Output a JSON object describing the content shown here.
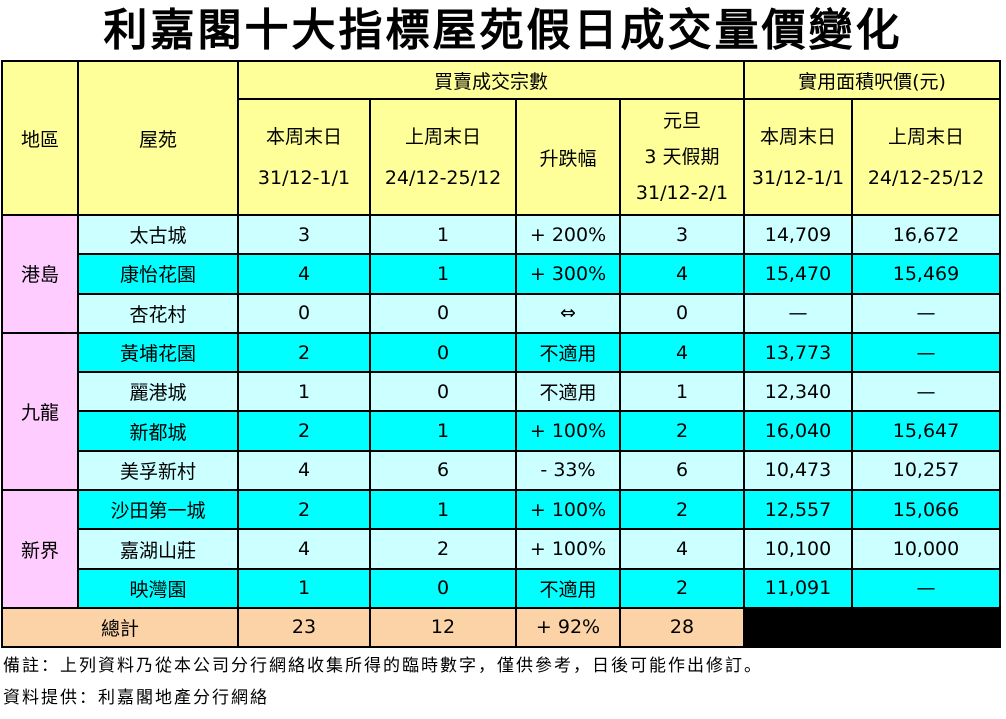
{
  "title": "利嘉閣十大指標屋苑假日成交量價變化",
  "header": {
    "district": "地區",
    "estate": "屋苑",
    "group_transactions": "買賣成交宗數",
    "group_price": "實用面積呎價(元)",
    "this_weekend": "本周末日",
    "this_weekend_dates": "31/12-1/1",
    "last_weekend": "上周末日",
    "last_weekend_dates": "24/12-25/12",
    "change": "升跌幅",
    "new_year_line1": "元旦",
    "new_year_line2": "3 天假期",
    "new_year_dates": "31/12-2/1",
    "price_this_weekend": "本周末日",
    "price_this_dates": "31/12-1/1",
    "price_last_weekend": "上周末日",
    "price_last_dates": "24/12-25/12"
  },
  "regions": [
    {
      "name": "港島",
      "rows": [
        {
          "estate": "太古城",
          "this": "3",
          "last": "1",
          "change": "+ 200%",
          "holiday": "3",
          "price_this": "14,709",
          "price_last": "16,672",
          "color": "#ccffff"
        },
        {
          "estate": "康怡花園",
          "this": "4",
          "last": "1",
          "change": "+ 300%",
          "holiday": "4",
          "price_this": "15,470",
          "price_last": "15,469",
          "color": "#00ffff"
        },
        {
          "estate": "杏花村",
          "this": "0",
          "last": "0",
          "change": "⇔",
          "holiday": "0",
          "price_this": "—",
          "price_last": "—",
          "color": "#ccffff"
        }
      ]
    },
    {
      "name": "九龍",
      "rows": [
        {
          "estate": "黃埔花園",
          "this": "2",
          "last": "0",
          "change": "不適用",
          "holiday": "4",
          "price_this": "13,773",
          "price_last": "—",
          "color": "#00ffff"
        },
        {
          "estate": "麗港城",
          "this": "1",
          "last": "0",
          "change": "不適用",
          "holiday": "1",
          "price_this": "12,340",
          "price_last": "—",
          "color": "#ccffff"
        },
        {
          "estate": "新都城",
          "this": "2",
          "last": "1",
          "change": "+ 100%",
          "holiday": "2",
          "price_this": "16,040",
          "price_last": "15,647",
          "color": "#00ffff"
        },
        {
          "estate": "美孚新村",
          "this": "4",
          "last": "6",
          "change": "- 33%",
          "holiday": "6",
          "price_this": "10,473",
          "price_last": "10,257",
          "color": "#ccffff"
        }
      ]
    },
    {
      "name": "新界",
      "rows": [
        {
          "estate": "沙田第一城",
          "this": "2",
          "last": "1",
          "change": "+ 100%",
          "holiday": "2",
          "price_this": "12,557",
          "price_last": "15,066",
          "color": "#00ffff"
        },
        {
          "estate": "嘉湖山莊",
          "this": "4",
          "last": "2",
          "change": "+ 100%",
          "holiday": "4",
          "price_this": "10,100",
          "price_last": "10,000",
          "color": "#ccffff"
        },
        {
          "estate": "映灣園",
          "this": "1",
          "last": "0",
          "change": "不適用",
          "holiday": "2",
          "price_this": "11,091",
          "price_last": "—",
          "color": "#00ffff"
        }
      ]
    }
  ],
  "total": {
    "label": "總計",
    "this": "23",
    "last": "12",
    "change": "+ 92%",
    "holiday": "28"
  },
  "footer": {
    "note": "備註：上列資料乃從本公司分行網絡收集所得的臨時數字，僅供參考，日後可能作出修訂。",
    "source": "資料提供：利嘉閣地產分行網絡"
  },
  "colors": {
    "header": "#ffff99",
    "region": "#ffccff",
    "light": "#ccffff",
    "cyan": "#00ffff",
    "total": "#fbd3a6"
  }
}
